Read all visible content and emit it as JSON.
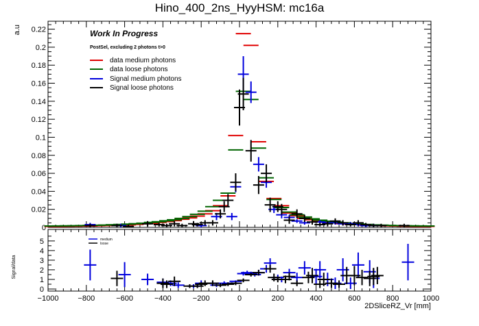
{
  "chart_data": {
    "type": "scatter",
    "title": "Hino_400_2ns_HyyHSM: mc16a",
    "annotation": "Work In Progress",
    "selection_label": "PostSel, excluding 2 photons t>0",
    "xlabel": "2DSliceRZ_Vr [mm]",
    "xlim": [
      -1000,
      1000
    ],
    "xticks": [
      -1000,
      -800,
      -600,
      -400,
      -200,
      0,
      200,
      400,
      600,
      800,
      1000
    ],
    "xtick_labels": [
      "−1000",
      "−800",
      "−600",
      "−400",
      "−200",
      "0",
      "200",
      "400",
      "600",
      "800",
      "1000"
    ],
    "top_panel": {
      "ylabel": "a.u",
      "ylim": [
        0,
        0.225
      ],
      "yticks": [
        0,
        0.02,
        0.04,
        0.06,
        0.08,
        0.1,
        0.12,
        0.14,
        0.16,
        0.18,
        0.2,
        0.22
      ],
      "ytick_labels": [
        "0",
        "0.02",
        "0.04",
        "0.06",
        "0.08",
        "0.1",
        "0.12",
        "0.14",
        "0.16",
        "0.18",
        "0.2",
        "0.22"
      ],
      "legend": [
        "data medium photons",
        "data loose photons",
        "Signal medium photons",
        "Signal loose photons"
      ],
      "series": [
        {
          "name": "data medium photons",
          "color": "#e00000",
          "style": "hbar",
          "half_width": 11,
          "x": [
            -980,
            -940,
            -900,
            -860,
            -820,
            -780,
            -740,
            -700,
            -660,
            -620,
            -580,
            -540,
            -500,
            -460,
            -420,
            -380,
            -340,
            -300,
            -260,
            -220,
            -180,
            -140,
            -100,
            -60,
            -20,
            20,
            60,
            100,
            140,
            180,
            220,
            260,
            300,
            340,
            380,
            420,
            460,
            500,
            540,
            580,
            620,
            660,
            700,
            740,
            780,
            820,
            860,
            900,
            940,
            980
          ],
          "values": [
            0.001,
            0.001,
            0.0012,
            0.0013,
            0.0014,
            0.0015,
            0.0018,
            0.002,
            0.0022,
            0.0025,
            0.0028,
            0.0033,
            0.004,
            0.0045,
            0.0055,
            0.0065,
            0.0075,
            0.009,
            0.0105,
            0.0125,
            0.015,
            0.0185,
            0.024,
            0.035,
            0.102,
            0.215,
            0.202,
            0.095,
            0.051,
            0.032,
            0.024,
            0.016,
            0.013,
            0.01,
            0.0085,
            0.007,
            0.0058,
            0.005,
            0.0042,
            0.0036,
            0.003,
            0.0026,
            0.0022,
            0.0019,
            0.0017,
            0.0015,
            0.0013,
            0.0012,
            0.001,
            0.001
          ]
        },
        {
          "name": "data loose photons",
          "color": "#006400",
          "style": "hbar",
          "half_width": 11,
          "x": [
            -980,
            -940,
            -900,
            -860,
            -820,
            -780,
            -740,
            -700,
            -660,
            -620,
            -580,
            -540,
            -500,
            -460,
            -420,
            -380,
            -340,
            -300,
            -260,
            -220,
            -180,
            -140,
            -100,
            -60,
            -20,
            20,
            60,
            100,
            140,
            180,
            220,
            260,
            300,
            340,
            380,
            420,
            460,
            500,
            540,
            580,
            620,
            660,
            700,
            740,
            780,
            820,
            860,
            900,
            940,
            980
          ],
          "values": [
            0.0015,
            0.0016,
            0.0017,
            0.0018,
            0.002,
            0.0022,
            0.0024,
            0.0026,
            0.0029,
            0.0032,
            0.0036,
            0.0041,
            0.0047,
            0.0055,
            0.0063,
            0.0073,
            0.0085,
            0.01,
            0.012,
            0.0145,
            0.018,
            0.023,
            0.03,
            0.038,
            0.086,
            0.151,
            0.142,
            0.088,
            0.055,
            0.031,
            0.022,
            0.017,
            0.014,
            0.0115,
            0.0095,
            0.008,
            0.0068,
            0.0058,
            0.005,
            0.0043,
            0.0037,
            0.0032,
            0.0028,
            0.0025,
            0.0022,
            0.002,
            0.0018,
            0.0017,
            0.0016,
            0.0015
          ]
        },
        {
          "name": "Signal medium photons",
          "color": "#0000dd",
          "style": "errorbar",
          "half_width": 8,
          "x": [
            -780,
            -620,
            -200,
            -120,
            -40,
            -20,
            20,
            60,
            100,
            140,
            180,
            220,
            260,
            300,
            340,
            420,
            460,
            500,
            540,
            580,
            620,
            660,
            700
          ],
          "values": [
            0.003,
            0.002,
            0.002,
            0.012,
            0.012,
            0.045,
            0.17,
            0.15,
            0.07,
            0.05,
            0.02,
            0.014,
            0.011,
            0.007,
            0.005,
            0.006,
            0.005,
            0.005,
            0.004,
            0.004,
            0.003,
            0.002,
            0.002
          ],
          "errors": [
            0.002,
            0.002,
            0.002,
            0.004,
            0.004,
            0.006,
            0.02,
            0.012,
            0.008,
            0.006,
            0.004,
            0.004,
            0.003,
            0.002,
            0.002,
            0.002,
            0.002,
            0.002,
            0.002,
            0.002,
            0.002,
            0.002,
            0.002
          ]
        },
        {
          "name": "Signal loose photons",
          "color": "#000000",
          "style": "errorbar",
          "half_width": 8,
          "x": [
            -780,
            -640,
            -580,
            -480,
            -420,
            -380,
            -340,
            -300,
            -240,
            -220,
            -180,
            -140,
            -100,
            -80,
            -60,
            -20,
            0,
            20,
            60,
            100,
            140,
            160,
            200,
            220,
            260,
            300,
            340,
            380,
            420,
            460,
            500,
            540,
            580,
            620,
            660,
            700,
            740,
            860
          ],
          "values": [
            0.002,
            0.002,
            0.001,
            0.004,
            0.003,
            0.002,
            0.004,
            0.002,
            0.004,
            0.003,
            0.005,
            0.005,
            0.015,
            0.023,
            0.03,
            0.05,
            0.133,
            0.148,
            0.085,
            0.047,
            0.06,
            0.025,
            0.023,
            0.02,
            0.008,
            0.015,
            0.01,
            0.006,
            0.003,
            0.004,
            0.007,
            0.005,
            0.003,
            0.005,
            0.003,
            0.002,
            0.002,
            0.002
          ],
          "errors": [
            0.002,
            0.002,
            0.002,
            0.003,
            0.002,
            0.002,
            0.003,
            0.002,
            0.003,
            0.002,
            0.003,
            0.003,
            0.005,
            0.006,
            0.007,
            0.01,
            0.02,
            0.018,
            0.012,
            0.01,
            0.01,
            0.008,
            0.006,
            0.006,
            0.004,
            0.005,
            0.004,
            0.003,
            0.002,
            0.003,
            0.003,
            0.003,
            0.002,
            0.003,
            0.002,
            0.002,
            0.002,
            0.002
          ]
        }
      ]
    },
    "ratio_panel": {
      "ylabel": "Signal/data",
      "ylim": [
        0,
        5.7
      ],
      "yticks": [
        0,
        1,
        2,
        3,
        4,
        5
      ],
      "ytick_labels": [
        "0",
        "1",
        "2",
        "3",
        "4",
        "5"
      ],
      "legend": [
        "medium",
        "loose"
      ],
      "series": [
        {
          "name": "medium",
          "color": "#0000dd",
          "half_width": 9,
          "x": [
            -780,
            -600,
            -480,
            -400,
            -360,
            -320,
            -240,
            -200,
            -140,
            -120,
            -80,
            -40,
            -20,
            20,
            40,
            60,
            80,
            100,
            140,
            160,
            200,
            220,
            260,
            300,
            340,
            400,
            420,
            460,
            500,
            540,
            580,
            620,
            680,
            700,
            880
          ],
          "values": [
            2.5,
            1.5,
            1.0,
            0.7,
            0.6,
            0.4,
            0.3,
            0.6,
            0.6,
            0.4,
            0.6,
            0.6,
            0.8,
            1.6,
            1.7,
            1.6,
            1.5,
            1.7,
            2.1,
            2.7,
            1.2,
            1.0,
            1.7,
            1.2,
            2.2,
            1.3,
            2.0,
            1.0,
            0.6,
            2.0,
            0.6,
            2.5,
            1.8,
            1.1,
            2.8
          ],
          "errors": [
            1.6,
            1.3,
            0.6,
            0.4,
            0.3,
            0.3,
            0.2,
            0.3,
            0.2,
            0.2,
            0.2,
            0.1,
            0.1,
            0.2,
            0.2,
            0.2,
            0.2,
            0.3,
            0.4,
            0.5,
            0.3,
            0.3,
            0.4,
            0.5,
            0.7,
            0.8,
            0.9,
            0.7,
            0.6,
            1.2,
            0.6,
            1.3,
            1.2,
            1.0,
            1.9
          ]
        },
        {
          "name": "loose",
          "color": "#000000",
          "half_width": 9,
          "x": [
            -640,
            -400,
            -380,
            -340,
            -260,
            -220,
            -200,
            -180,
            -140,
            -100,
            -60,
            -20,
            20,
            60,
            100,
            160,
            180,
            200,
            240,
            260,
            300,
            360,
            380,
            420,
            440,
            480,
            520,
            560,
            600,
            640,
            680,
            700,
            720
          ],
          "values": [
            1.1,
            0.6,
            0.5,
            0.8,
            0.3,
            0.3,
            0.5,
            0.6,
            0.6,
            0.4,
            0.5,
            0.6,
            0.9,
            1.5,
            1.7,
            2.1,
            1.2,
            1.0,
            1.0,
            1.3,
            0.6,
            1.2,
            1.4,
            0.5,
            1.0,
            0.6,
            0.5,
            1.4,
            1.4,
            1.2,
            1.1,
            1.3,
            1.4
          ],
          "errors": [
            0.8,
            0.5,
            0.4,
            0.5,
            0.2,
            0.2,
            0.2,
            0.3,
            0.3,
            0.2,
            0.2,
            0.2,
            0.2,
            0.2,
            0.3,
            0.4,
            0.4,
            0.3,
            0.4,
            0.4,
            0.3,
            0.6,
            0.8,
            0.4,
            0.7,
            0.5,
            0.4,
            0.9,
            1.0,
            0.8,
            0.8,
            0.9,
            0.9
          ]
        }
      ]
    }
  }
}
